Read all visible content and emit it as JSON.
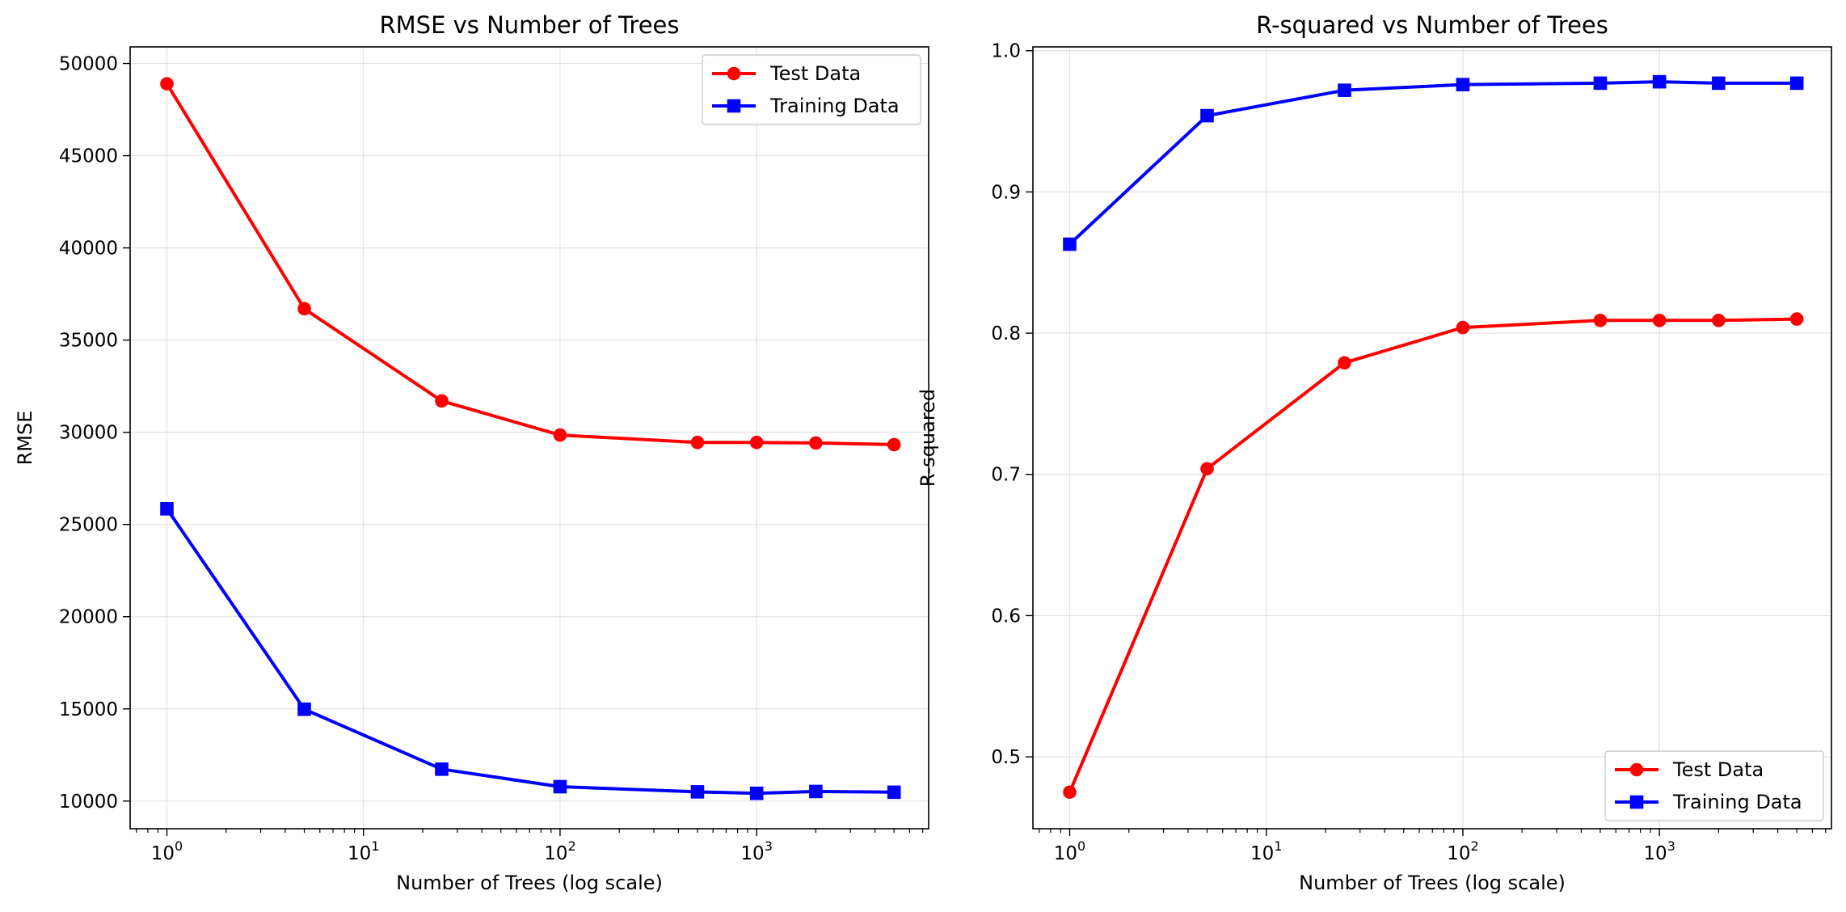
{
  "chart_data": [
    {
      "type": "line",
      "title": "RMSE vs Number of Trees",
      "xlabel": "Number of Trees (log scale)",
      "ylabel": "RMSE",
      "xscale": "log",
      "xlim": [
        0.65,
        7500
      ],
      "ylim": [
        8500,
        50900
      ],
      "x": [
        1,
        5,
        25,
        100,
        500,
        1000,
        2000,
        5000
      ],
      "xticks": [
        {
          "base": "10",
          "exp": "0",
          "value": 1
        },
        {
          "base": "10",
          "exp": "1",
          "value": 10
        },
        {
          "base": "10",
          "exp": "2",
          "value": 100
        },
        {
          "base": "10",
          "exp": "3",
          "value": 1000
        }
      ],
      "yticks": [
        10000,
        15000,
        20000,
        25000,
        30000,
        35000,
        40000,
        45000,
        50000
      ],
      "grid": true,
      "legend_position": "top-right",
      "series": [
        {
          "name": "Test Data",
          "color": "#ff0000",
          "marker": "circle",
          "values": [
            48900,
            36700,
            31700,
            29850,
            29450,
            29450,
            29420,
            29330
          ]
        },
        {
          "name": "Training Data",
          "color": "#0000ff",
          "marker": "square",
          "values": [
            25850,
            14980,
            11730,
            10780,
            10500,
            10420,
            10520,
            10480
          ]
        }
      ]
    },
    {
      "type": "line",
      "title": "R-squared vs Number of Trees",
      "xlabel": "Number of Trees (log scale)",
      "ylabel": "R-squared",
      "xscale": "log",
      "xlim": [
        0.65,
        7500
      ],
      "ylim": [
        0.4491,
        1.0027
      ],
      "x": [
        1,
        5,
        25,
        100,
        500,
        1000,
        2000,
        5000
      ],
      "xticks": [
        {
          "base": "10",
          "exp": "0",
          "value": 1
        },
        {
          "base": "10",
          "exp": "1",
          "value": 10
        },
        {
          "base": "10",
          "exp": "2",
          "value": 100
        },
        {
          "base": "10",
          "exp": "3",
          "value": 1000
        }
      ],
      "yticks": [
        0.5,
        0.6,
        0.7,
        0.8,
        0.9,
        1.0
      ],
      "ytick_labels": [
        "0.5",
        "0.6",
        "0.7",
        "0.8",
        "0.9",
        "1.0"
      ],
      "grid": true,
      "legend_position": "bottom-right",
      "series": [
        {
          "name": "Test Data",
          "color": "#ff0000",
          "marker": "circle",
          "values": [
            0.475,
            0.704,
            0.779,
            0.804,
            0.809,
            0.809,
            0.809,
            0.81
          ]
        },
        {
          "name": "Training Data",
          "color": "#0000ff",
          "marker": "square",
          "values": [
            0.863,
            0.954,
            0.972,
            0.976,
            0.977,
            0.978,
            0.977,
            0.977
          ]
        }
      ]
    }
  ]
}
